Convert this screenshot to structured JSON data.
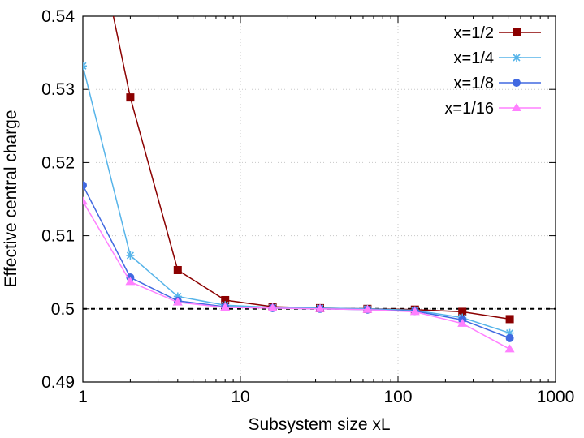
{
  "chart_data": {
    "type": "line",
    "xlabel": "Subsystem size xL",
    "ylabel": "Effective central charge",
    "xscale": "log",
    "xlim": [
      1,
      1000
    ],
    "ylim": [
      0.49,
      0.54
    ],
    "xticks": [
      1,
      10,
      100,
      1000
    ],
    "xtick_labels": [
      "1",
      "10",
      "100",
      "1000"
    ],
    "yticks": [
      0.49,
      0.5,
      0.51,
      0.52,
      0.53,
      0.54
    ],
    "ytick_labels": [
      "0.49",
      "0.5",
      "0.51",
      "0.52",
      "0.53",
      "0.54"
    ],
    "grid": true,
    "legend_position": "top-right",
    "reference_line": {
      "y": 0.5,
      "style": "dashed",
      "color": "#000000"
    },
    "x": [
      1,
      2,
      4,
      8,
      16,
      32,
      64,
      128,
      256,
      512
    ],
    "series": [
      {
        "name": "x=1/2",
        "color": "#8b0000",
        "marker": "square",
        "values": [
          0.56,
          0.5289,
          0.5053,
          0.5012,
          0.5003,
          0.5001,
          0.5,
          0.4999,
          0.4996,
          0.4986
        ]
      },
      {
        "name": "x=1/4",
        "color": "#56b4e9",
        "marker": "star",
        "values": [
          0.5332,
          0.5073,
          0.5017,
          0.5005,
          0.5002,
          0.5001,
          0.5,
          0.4998,
          0.4988,
          0.4967
        ]
      },
      {
        "name": "x=1/8",
        "color": "#4169e1",
        "marker": "circle",
        "values": [
          0.5169,
          0.5043,
          0.5011,
          0.5003,
          0.5001,
          0.5,
          0.4999,
          0.4997,
          0.4985,
          0.496
        ]
      },
      {
        "name": "x=1/16",
        "color": "#ff80ff",
        "marker": "triangle",
        "values": [
          0.5147,
          0.5037,
          0.5009,
          0.5002,
          0.5001,
          0.5,
          0.4999,
          0.4996,
          0.498,
          0.4945
        ]
      }
    ]
  }
}
